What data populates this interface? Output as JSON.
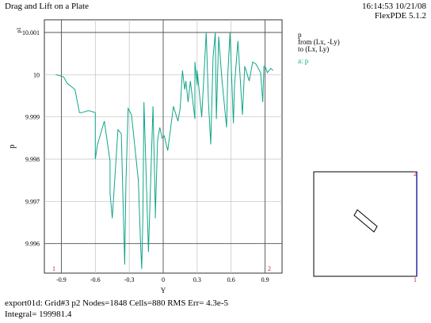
{
  "header": {
    "title": "Drag and Lift on a Plate",
    "timestamp": "16:14:53 10/21/08",
    "version": "FlexPDE 5.1.2"
  },
  "legend": {
    "variable": "p",
    "from": "from (Lx, -Ly)",
    "to": "to (Lx, Ly)",
    "series_label": "a: p",
    "series_color": "#11a58a"
  },
  "footer": {
    "line1": "export01d:  Grid#3  p2  Nodes=1848 Cells=880 RMS Err= 4.3e-5",
    "line2": "Integral=  199981.4"
  },
  "chart_data": {
    "type": "line",
    "xlabel": "Y",
    "ylabel": "p",
    "yscale_label": "p1",
    "xlim": [
      -1.05,
      1.05
    ],
    "ylim": [
      9.9953,
      10.0013
    ],
    "xticks": [
      -0.9,
      -0.6,
      -0.3,
      0,
      0.3,
      0.6,
      0.9
    ],
    "xtick_labels": [
      "-0.9",
      "-0.6",
      "-0.3",
      "0",
      "0.3",
      "0.6",
      "0.9"
    ],
    "yticks": [
      9.996,
      9.997,
      9.998,
      9.999,
      10,
      10.001
    ],
    "ytick_labels": [
      "9.996",
      "9.997",
      "9.998",
      "9.999",
      "10",
      "10.001"
    ],
    "vertical_lines": [
      -0.9,
      0,
      0.9
    ],
    "horizontal_lines": [
      9.996,
      10.001
    ],
    "endpoint_labels": [
      "1",
      "2"
    ],
    "color": "#11a58a",
    "series": [
      {
        "x": [
          -0.95,
          -0.88,
          -0.85,
          -0.78,
          -0.74,
          -0.72,
          -0.66,
          -0.6,
          -0.6,
          -0.6,
          -0.58,
          -0.52,
          -0.47,
          -0.47,
          -0.45,
          -0.4,
          -0.37,
          -0.34,
          -0.33,
          -0.31,
          -0.28,
          -0.22,
          -0.2,
          -0.19,
          -0.18,
          -0.17,
          -0.13,
          -0.09,
          -0.08,
          -0.07,
          -0.07,
          -0.05,
          -0.03,
          -0.01,
          0.01,
          0.04,
          0.09,
          0.13,
          0.15,
          0.17,
          0.19,
          0.2,
          0.22,
          0.24,
          0.28,
          0.28,
          0.3,
          0.3,
          0.34,
          0.38,
          0.4,
          0.42,
          0.44,
          0.46,
          0.47,
          0.49,
          0.52,
          0.56,
          0.57,
          0.59,
          0.62,
          0.63,
          0.66,
          0.7,
          0.72,
          0.76,
          0.79,
          0.82,
          0.84,
          0.86,
          0.88,
          0.89,
          0.9,
          0.92,
          0.95,
          0.97
        ],
        "y": [
          10.0,
          9.99995,
          9.9998,
          9.99965,
          9.9991,
          9.9991,
          9.99915,
          9.9991,
          9.9988,
          9.998,
          9.99835,
          9.9989,
          9.99795,
          9.9972,
          9.9966,
          9.9987,
          9.9986,
          9.9955,
          9.9974,
          9.9992,
          9.99905,
          9.9975,
          9.996,
          9.9954,
          9.9966,
          9.99935,
          9.9958,
          9.99925,
          9.99805,
          9.9968,
          9.9966,
          9.99845,
          9.99875,
          9.9985,
          9.99855,
          9.9982,
          9.99925,
          9.9989,
          9.9992,
          10.0001,
          9.99965,
          9.99985,
          9.99935,
          9.99985,
          9.99895,
          10.0003,
          9.99975,
          10.0001,
          9.999,
          10.001,
          9.99935,
          9.99835,
          10.0004,
          10.001,
          9.99895,
          10.0009,
          9.99985,
          9.99875,
          9.99995,
          10.001,
          9.99885,
          9.99975,
          10.0008,
          9.99905,
          10.0002,
          9.99985,
          10.0003,
          10.00025,
          10.00015,
          10.00005,
          9.99935,
          10.0002,
          10.0002,
          10.00005,
          10.00015,
          10.0001
        ]
      }
    ]
  },
  "inset": {
    "corner_labels": [
      "1",
      "2"
    ]
  }
}
